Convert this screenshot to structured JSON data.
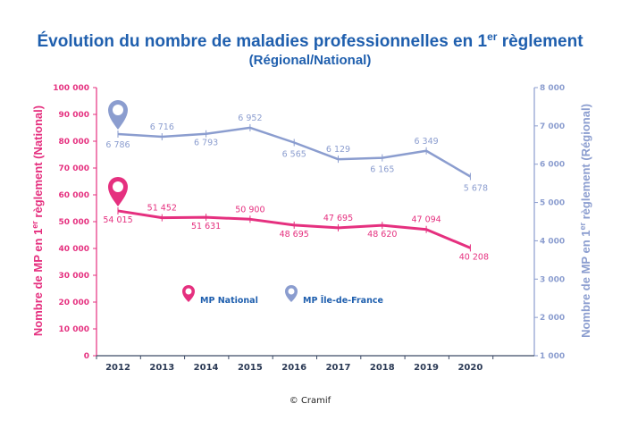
{
  "chart_data": {
    "type": "line",
    "title_main": "Évolution du nombre de maladies professionnelles en 1",
    "title_sup": "er",
    "title_end": " règlement",
    "subtitle": "(Régional/National)",
    "categories": [
      "2012",
      "2013",
      "2014",
      "2015",
      "2016",
      "2017",
      "2018",
      "2019",
      "2020"
    ],
    "left_axis": {
      "label_pre": "Nombre de MP en 1",
      "label_sup": "er",
      "label_post": " règlement (National)",
      "ylim": [
        0,
        100000
      ],
      "ticks": [
        0,
        10000,
        20000,
        30000,
        40000,
        50000,
        60000,
        70000,
        80000,
        90000,
        100000
      ],
      "tick_labels": [
        "0",
        "10 000",
        "20 000",
        "30 000",
        "40 000",
        "50 000",
        "60 000",
        "70 000",
        "80 000",
        "90 000",
        "100 000"
      ]
    },
    "right_axis": {
      "label_pre": "Nombre de MP en 1",
      "label_sup": "er",
      "label_post": " règlement (Régional)",
      "ylim": [
        1000,
        8000
      ],
      "ticks": [
        1000,
        2000,
        3000,
        4000,
        5000,
        6000,
        7000,
        8000
      ],
      "tick_labels": [
        "1 000",
        "2 000",
        "3 000",
        "4 000",
        "5 000",
        "6 000",
        "7 000",
        "8 000"
      ]
    },
    "series": [
      {
        "name": "MP National",
        "axis": "left",
        "color": "#e5307f",
        "values": [
          54015,
          51452,
          51631,
          50900,
          48695,
          47695,
          48620,
          47094,
          40208
        ],
        "labels": [
          "54 015",
          "51 452",
          "51 631",
          "50 900",
          "48 695",
          "47 695",
          "48 620",
          "47 094",
          "40 208"
        ]
      },
      {
        "name": "MP Île-de-France",
        "axis": "right",
        "color": "#8b9dcf",
        "values": [
          6786,
          6716,
          6793,
          6952,
          6565,
          6129,
          6165,
          6349,
          5678
        ],
        "labels": [
          "6 786",
          "6 716",
          "6 793",
          "6 952",
          "6 565",
          "6 129",
          "6 165",
          "6 349",
          "5 678"
        ]
      }
    ],
    "source": "© Cramif",
    "colors": {
      "title": "#1f5fae",
      "left_axis": "#e5307f",
      "right_axis": "#8b9dcf",
      "text": "#2b3a55"
    }
  }
}
